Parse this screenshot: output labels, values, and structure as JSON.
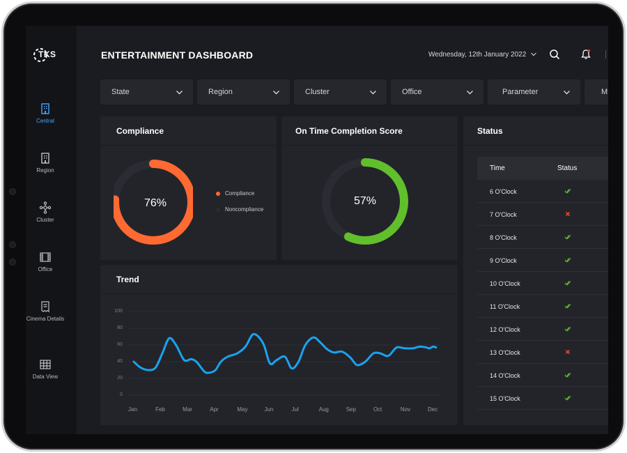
{
  "brand": {
    "logo_text": "TKS"
  },
  "sidebar": {
    "items": [
      {
        "label": "Central",
        "icon": "building-icon",
        "active": true
      },
      {
        "label": "Region",
        "icon": "office-building-icon",
        "active": false
      },
      {
        "label": "Cluster",
        "icon": "network-icon",
        "active": false
      },
      {
        "label": "Office",
        "icon": "film-icon",
        "active": false
      },
      {
        "label": "Cinema Details",
        "icon": "receipt-icon",
        "active": false
      },
      {
        "label": "Data View",
        "icon": "table-grid-icon",
        "active": false
      }
    ]
  },
  "header": {
    "title": "ENTERTAINMENT DASHBOARD",
    "date": "Wednesday, 12th January 2022"
  },
  "filters": [
    {
      "label": "State"
    },
    {
      "label": "Region"
    },
    {
      "label": "Cluster"
    },
    {
      "label": "Office"
    },
    {
      "label": "Parameter"
    },
    {
      "label": "M"
    }
  ],
  "compliance": {
    "title": "Compliance",
    "value": 76,
    "value_label": "76%",
    "legend": [
      {
        "name": "Compliance",
        "color": "#ff6a33"
      },
      {
        "name": "Noncompliance",
        "color": "#2a2b31"
      }
    ]
  },
  "completion": {
    "title": "On Time Completion Score",
    "value": 57,
    "value_label": "57%",
    "color": "#62bf2c"
  },
  "status": {
    "title": "Status",
    "columns": [
      "Time",
      "Status"
    ],
    "rows": [
      {
        "time": "6 O'Clock",
        "status": "ok"
      },
      {
        "time": "7 O'Clock",
        "status": "fail"
      },
      {
        "time": "8 O'Clock",
        "status": "ok"
      },
      {
        "time": "9 O'Clock",
        "status": "ok"
      },
      {
        "time": "10 O'Clock",
        "status": "ok"
      },
      {
        "time": "11 O'Clock",
        "status": "ok"
      },
      {
        "time": "12 O'Clock",
        "status": "ok"
      },
      {
        "time": "13 O'Clock",
        "status": "fail"
      },
      {
        "time": "14 O'Clock",
        "status": "ok"
      },
      {
        "time": "15 O'Clock",
        "status": "ok"
      }
    ]
  },
  "trend": {
    "title": "Trend",
    "chart_data": {
      "type": "line",
      "color": "#1aa3ef",
      "ylim": [
        0,
        100
      ],
      "yticks": [
        0,
        20,
        40,
        60,
        80,
        100
      ],
      "xticks": [
        "Jan",
        "Feb",
        "Mar",
        "Apr",
        "May",
        "Jun",
        "Jul",
        "Aug",
        "Sep",
        "Oct",
        "Nov",
        "Dec"
      ],
      "x": [
        0,
        0.25,
        0.55,
        0.8,
        1.05,
        1.3,
        1.55,
        1.85,
        2.1,
        2.3,
        2.6,
        2.8,
        3.0,
        3.2,
        3.45,
        3.8,
        4.1,
        4.4,
        4.75,
        5.0,
        5.25,
        5.55,
        5.8,
        6.05,
        6.3,
        6.6,
        6.85,
        7.1,
        7.35,
        7.65,
        7.95,
        8.2,
        8.5,
        8.8,
        9.05,
        9.35,
        9.65,
        9.95,
        10.25,
        10.5,
        10.75,
        10.85,
        11.0,
        11.1
      ],
      "y": [
        40,
        33,
        30,
        33,
        50,
        68,
        60,
        42,
        43,
        40,
        28,
        27,
        30,
        40,
        46,
        50,
        58,
        73,
        62,
        38,
        42,
        46,
        32,
        40,
        60,
        69,
        63,
        55,
        51,
        52,
        45,
        36,
        40,
        50,
        50,
        47,
        57,
        56,
        56,
        58,
        57,
        56,
        58,
        57
      ]
    }
  }
}
